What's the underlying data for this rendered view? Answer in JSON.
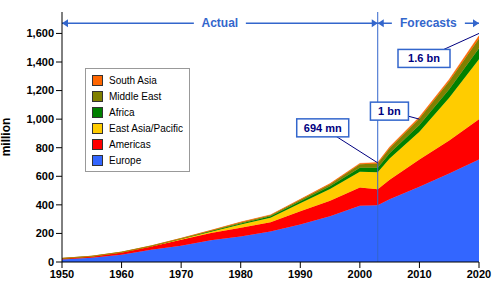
{
  "chart_data": {
    "type": "area",
    "stacked": true,
    "grid": false,
    "legend": "upper left",
    "y_label": "million",
    "x": [
      1950,
      1955,
      1960,
      1965,
      1970,
      1975,
      1980,
      1985,
      1990,
      1995,
      2000,
      2003,
      2005,
      2010,
      2015,
      2020
    ],
    "xlim": [
      1950,
      2020
    ],
    "xticks": [
      1950,
      1960,
      1970,
      1980,
      1990,
      2000,
      2010,
      2020
    ],
    "ylim": [
      0,
      1750
    ],
    "yticks": [
      {
        "value": 0,
        "label": "0"
      },
      {
        "value": 200,
        "label": "200"
      },
      {
        "value": 400,
        "label": "400"
      },
      {
        "value": 600,
        "label": "600"
      },
      {
        "value": 800,
        "label": "800"
      },
      {
        "value": 1000,
        "label": "1,000"
      },
      {
        "value": 1200,
        "label": "1,200"
      },
      {
        "value": 1400,
        "label": "1,400"
      },
      {
        "value": 1600,
        "label": "1,600"
      }
    ],
    "series": [
      {
        "name": "Europe",
        "color": "#3366ff",
        "values": [
          17,
          30,
          50,
          85,
          113,
          153,
          178,
          213,
          262,
          320,
          393,
          397,
          440,
          527,
          620,
          717
        ]
      },
      {
        "name": "Americas",
        "color": "#ff0000",
        "values": [
          7.5,
          9,
          17,
          23,
          42,
          50,
          62,
          65,
          93,
          109,
          128,
          113,
          135,
          190,
          230,
          282
        ]
      },
      {
        "name": "East Asia/Pacific",
        "color": "#ffcc00",
        "values": [
          0.2,
          0.5,
          0.9,
          2.5,
          6,
          9,
          23,
          32,
          56,
          82,
          111,
          119,
          150,
          195,
          300,
          420
        ]
      },
      {
        "name": "Africa",
        "color": "#008000",
        "values": [
          0.5,
          0.6,
          0.8,
          1.5,
          2.4,
          4.5,
          7.2,
          9.7,
          15,
          20,
          28,
          31,
          37,
          47,
          60,
          77
        ]
      },
      {
        "name": "Middle East",
        "color": "#808000",
        "values": [
          0.2,
          0.4,
          0.6,
          1.2,
          1.9,
          4,
          7.1,
          7.5,
          9.6,
          13.7,
          24,
          30,
          35,
          46,
          55,
          69
        ]
      },
      {
        "name": "South Asia",
        "color": "#ff6600",
        "values": [
          0.04,
          0.06,
          0.1,
          0.3,
          0.6,
          1.2,
          2.2,
          2.5,
          3.2,
          4.2,
          6,
          6,
          8,
          10,
          13,
          19
        ]
      }
    ],
    "periods": [
      {
        "label": "Actual",
        "x": [
          1950,
          2003
        ]
      },
      {
        "label": "Forecasts",
        "x": [
          2003,
          2020
        ]
      }
    ],
    "annotations": [
      {
        "text": "694 mn",
        "x": 2003,
        "y": 694
      },
      {
        "text": "1 bn",
        "x": 2010,
        "y": 1000
      },
      {
        "text": "1.6 bn",
        "x": 2020,
        "y": 1600
      }
    ]
  }
}
